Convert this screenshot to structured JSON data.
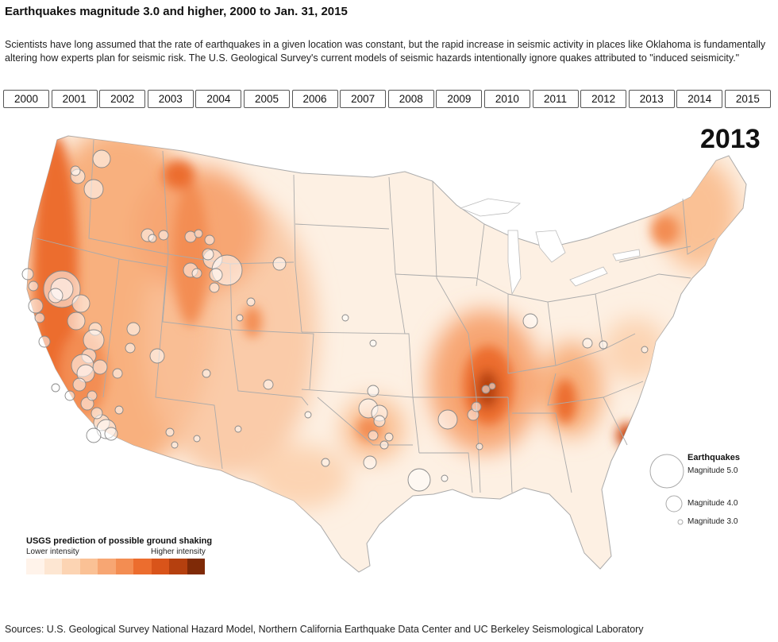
{
  "header": {
    "title": "Earthquakes magnitude 3.0 and higher, 2000 to Jan. 31, 2015",
    "description": "Scientists have long assumed that the rate of earthquakes in a given location was constant, but the rapid increase in seismic activity in places like Oklahoma is fundamentally altering how experts plan for seismic risk. The U.S. Geological Survey's current models of seismic hazards intentionally ignore quakes attributed to \"induced seismicity.\""
  },
  "year_buttons": [
    "2000",
    "2001",
    "2002",
    "2003",
    "2004",
    "2005",
    "2006",
    "2007",
    "2008",
    "2009",
    "2010",
    "2011",
    "2012",
    "2013",
    "2014",
    "2015"
  ],
  "selected_year": "2013",
  "map": {
    "selected_year_label": "2013",
    "colors": {
      "land": "#fdf0e3",
      "border": "#aaaaaa",
      "quake_stroke": "#888888",
      "quake_fill": "rgba(255,255,255,0.55)"
    }
  },
  "shaking_legend": {
    "title": "USGS prediction of possible ground shaking",
    "low_label": "Lower intensity",
    "high_label": "Higher intensity",
    "colors": [
      "#fff3ea",
      "#fde6d2",
      "#fcd4b3",
      "#fac195",
      "#f7a673",
      "#f38d52",
      "#ec6d2e",
      "#d9541a",
      "#b5400f",
      "#7f2a07"
    ]
  },
  "earthquake_legend": {
    "title": "Earthquakes",
    "items": [
      {
        "label": "Magnitude 5.0"
      },
      {
        "label": "Magnitude 4.0"
      },
      {
        "label": "Magnitude 3.0"
      }
    ]
  },
  "footer": {
    "sources": "Sources: U.S. Geological Survey National Hazard Model, Northern California Earthquake Data Center and UC Berkeley Seismological Laboratory"
  }
}
